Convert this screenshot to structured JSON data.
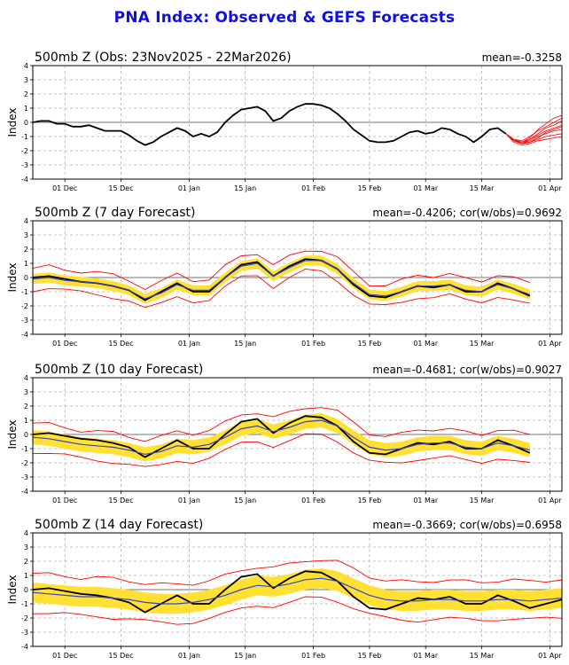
{
  "figure_title": "PNA Index: Observed & GEFS Forecasts",
  "colors": {
    "title": "#1010e0",
    "observed": "#000000",
    "members": "#ff0000",
    "spread": "#ffe033",
    "ensemble_mean": "#3344cc",
    "grid": "#b0b0b0"
  },
  "chart_data": [
    {
      "type": "line",
      "title": "500mb Z (Obs: 23Nov2025 - 22Mar2026)",
      "stat": "mean=-0.3258",
      "ylabel": "Index",
      "ylim": [
        -4,
        4
      ],
      "yticks": [
        -4,
        -3,
        -2,
        -1,
        0,
        1,
        2,
        3,
        4
      ],
      "xlim": [
        0,
        132
      ],
      "xticks": [
        {
          "x": 8,
          "label": "01 Dec"
        },
        {
          "x": 22,
          "label": "15 Dec"
        },
        {
          "x": 39,
          "label": "01 Jan"
        },
        {
          "x": 53,
          "label": "15 Jan"
        },
        {
          "x": 70,
          "label": "01 Feb"
        },
        {
          "x": 84,
          "label": "15 Feb"
        },
        {
          "x": 98,
          "label": "01 Mar"
        },
        {
          "x": 112,
          "label": "15 Mar"
        },
        {
          "x": 129,
          "label": "01 Apr"
        }
      ],
      "observed": {
        "x": [
          0,
          2,
          4,
          6,
          8,
          10,
          12,
          14,
          16,
          18,
          20,
          22,
          24,
          26,
          28,
          30,
          32,
          34,
          36,
          38,
          40,
          42,
          44,
          46,
          48,
          50,
          52,
          54,
          56,
          58,
          60,
          62,
          64,
          66,
          68,
          70,
          72,
          74,
          76,
          78,
          80,
          82,
          84,
          86,
          88,
          90,
          92,
          94,
          96,
          98,
          100,
          102,
          104,
          106,
          108,
          110,
          112,
          114,
          116,
          118
        ],
        "y": [
          0.0,
          0.1,
          0.1,
          -0.1,
          -0.1,
          -0.3,
          -0.3,
          -0.2,
          -0.4,
          -0.6,
          -0.6,
          -0.6,
          -0.9,
          -1.3,
          -1.6,
          -1.4,
          -1.0,
          -0.7,
          -0.4,
          -0.6,
          -1.0,
          -0.8,
          -1.0,
          -0.7,
          0.0,
          0.5,
          0.9,
          1.0,
          1.1,
          0.8,
          0.1,
          0.3,
          0.8,
          1.1,
          1.3,
          1.3,
          1.2,
          1.0,
          0.6,
          0.1,
          -0.5,
          -0.9,
          -1.3,
          -1.4,
          -1.4,
          -1.3,
          -1.0,
          -0.7,
          -0.6,
          -0.8,
          -0.7,
          -0.4,
          -0.5,
          -0.8,
          -1.0,
          -1.4,
          -1.0,
          -0.5,
          -0.4,
          -0.8
        ]
      },
      "members": {
        "x": [
          118,
          120,
          122,
          124,
          126,
          128,
          130,
          132
        ],
        "series": [
          [
            -0.8,
            -1.3,
            -1.5,
            -1.3,
            -1.0,
            -0.8,
            -0.6,
            -0.5
          ],
          [
            -0.8,
            -1.2,
            -1.3,
            -1.0,
            -0.6,
            -0.3,
            0.0,
            0.3
          ],
          [
            -0.8,
            -1.3,
            -1.5,
            -1.2,
            -0.8,
            -0.4,
            -0.2,
            0.1
          ],
          [
            -0.8,
            -1.4,
            -1.6,
            -1.5,
            -1.3,
            -1.2,
            -1.1,
            -1.0
          ],
          [
            -0.8,
            -1.2,
            -1.4,
            -1.1,
            -0.5,
            -0.1,
            0.3,
            0.5
          ],
          [
            -0.8,
            -1.3,
            -1.5,
            -1.4,
            -1.2,
            -1.0,
            -0.9,
            -0.8
          ],
          [
            -0.8,
            -1.3,
            -1.4,
            -1.2,
            -0.9,
            -0.6,
            -0.4,
            -0.2
          ],
          [
            -0.8,
            -1.2,
            -1.5,
            -1.4,
            -1.1,
            -0.7,
            -0.5,
            -0.3
          ]
        ]
      }
    },
    {
      "type": "line",
      "title": "500mb Z (7 day Forecast)",
      "stat": "mean=-0.4206; cor(w/obs)=0.9692",
      "ylabel": "Index",
      "ylim": [
        -4,
        4
      ],
      "yticks": [
        -4,
        -3,
        -2,
        -1,
        0,
        1,
        2,
        3,
        4
      ],
      "xlim": [
        0,
        132
      ],
      "xticks": [
        {
          "x": 8,
          "label": "01 Dec"
        },
        {
          "x": 22,
          "label": "15 Dec"
        },
        {
          "x": 39,
          "label": "01 Jan"
        },
        {
          "x": 53,
          "label": "15 Jan"
        },
        {
          "x": 70,
          "label": "01 Feb"
        },
        {
          "x": 84,
          "label": "15 Feb"
        },
        {
          "x": 98,
          "label": "01 Mar"
        },
        {
          "x": 112,
          "label": "15 Mar"
        },
        {
          "x": 129,
          "label": "01 Apr"
        }
      ],
      "forecast_x": [
        0,
        4,
        8,
        12,
        16,
        20,
        24,
        28,
        32,
        36,
        40,
        44,
        48,
        52,
        56,
        60,
        64,
        68,
        72,
        76,
        80,
        84,
        88,
        92,
        96,
        100,
        104,
        108,
        112,
        116,
        120,
        124
      ],
      "observed_y": [
        0.0,
        0.1,
        -0.1,
        -0.3,
        -0.4,
        -0.6,
        -0.9,
        -1.6,
        -1.0,
        -0.4,
        -1.0,
        -1.0,
        0.0,
        0.9,
        1.1,
        0.1,
        0.8,
        1.3,
        1.2,
        0.6,
        -0.5,
        -1.3,
        -1.4,
        -1.0,
        -0.6,
        -0.7,
        -0.5,
        -1.0,
        -1.0,
        -0.4,
        -0.8,
        -1.3
      ],
      "mean_y": [
        -0.1,
        0.0,
        -0.2,
        -0.3,
        -0.4,
        -0.6,
        -0.9,
        -1.5,
        -1.1,
        -0.5,
        -0.9,
        -0.9,
        0.0,
        0.8,
        1.0,
        0.1,
        0.7,
        1.2,
        1.2,
        0.6,
        -0.4,
        -1.2,
        -1.3,
        -1.0,
        -0.6,
        -0.6,
        -0.5,
        -0.9,
        -1.0,
        -0.5,
        -0.8,
        -1.2
      ],
      "spread": 0.35,
      "envelope": 0.75
    },
    {
      "type": "line",
      "title": "500mb Z (10 day Forecast)",
      "stat": "mean=-0.4681; cor(w/obs)=0.9027",
      "ylabel": "Index",
      "ylim": [
        -4,
        4
      ],
      "yticks": [
        -4,
        -3,
        -2,
        -1,
        0,
        1,
        2,
        3,
        4
      ],
      "xlim": [
        0,
        132
      ],
      "xticks": [
        {
          "x": 8,
          "label": "01 Dec"
        },
        {
          "x": 22,
          "label": "15 Dec"
        },
        {
          "x": 39,
          "label": "01 Jan"
        },
        {
          "x": 53,
          "label": "15 Jan"
        },
        {
          "x": 70,
          "label": "01 Feb"
        },
        {
          "x": 84,
          "label": "15 Feb"
        },
        {
          "x": 98,
          "label": "01 Mar"
        },
        {
          "x": 112,
          "label": "15 Mar"
        },
        {
          "x": 129,
          "label": "01 Apr"
        }
      ],
      "forecast_x": [
        0,
        4,
        8,
        12,
        16,
        20,
        24,
        28,
        32,
        36,
        40,
        44,
        48,
        52,
        56,
        60,
        64,
        68,
        72,
        76,
        80,
        84,
        88,
        92,
        96,
        100,
        104,
        108,
        112,
        116,
        120,
        124
      ],
      "observed_y": [
        0.0,
        0.1,
        -0.1,
        -0.3,
        -0.4,
        -0.6,
        -0.9,
        -1.6,
        -1.0,
        -0.4,
        -1.0,
        -1.0,
        0.0,
        0.9,
        1.1,
        0.1,
        0.8,
        1.3,
        1.2,
        0.6,
        -0.5,
        -1.3,
        -1.4,
        -1.0,
        -0.6,
        -0.7,
        -0.5,
        -1.0,
        -1.0,
        -0.4,
        -0.8,
        -1.3
      ],
      "mean_y": [
        -0.2,
        -0.3,
        -0.5,
        -0.7,
        -0.8,
        -0.9,
        -1.1,
        -1.4,
        -1.2,
        -0.8,
        -0.9,
        -0.7,
        -0.2,
        0.4,
        0.6,
        0.2,
        0.5,
        0.9,
        1.0,
        0.6,
        -0.2,
        -0.9,
        -1.1,
        -1.0,
        -0.7,
        -0.6,
        -0.6,
        -0.9,
        -1.0,
        -0.6,
        -0.8,
        -1.1
      ],
      "spread": 0.5,
      "envelope": 1.0
    },
    {
      "type": "line",
      "title": "500mb Z (14 day Forecast)",
      "stat": "mean=-0.3669; cor(w/obs)=0.6958",
      "ylabel": "Index",
      "ylim": [
        -4,
        4
      ],
      "yticks": [
        -4,
        -3,
        -2,
        -1,
        0,
        1,
        2,
        3,
        4
      ],
      "xlim": [
        0,
        132
      ],
      "xticks": [
        {
          "x": 8,
          "label": "01 Dec"
        },
        {
          "x": 22,
          "label": "15 Dec"
        },
        {
          "x": 39,
          "label": "01 Jan"
        },
        {
          "x": 53,
          "label": "15 Jan"
        },
        {
          "x": 70,
          "label": "01 Feb"
        },
        {
          "x": 84,
          "label": "15 Feb"
        },
        {
          "x": 98,
          "label": "01 Mar"
        },
        {
          "x": 112,
          "label": "15 Mar"
        },
        {
          "x": 129,
          "label": "01 Apr"
        }
      ],
      "forecast_x": [
        0,
        4,
        8,
        12,
        16,
        20,
        24,
        28,
        32,
        36,
        40,
        44,
        48,
        52,
        56,
        60,
        64,
        68,
        72,
        76,
        80,
        84,
        88,
        92,
        96,
        100,
        104,
        108,
        112,
        116,
        120,
        124,
        128,
        132
      ],
      "observed_y": [
        0.0,
        0.1,
        -0.1,
        -0.3,
        -0.4,
        -0.6,
        -0.9,
        -1.6,
        -1.0,
        -0.4,
        -1.0,
        -1.0,
        0.0,
        0.9,
        1.1,
        0.1,
        0.8,
        1.3,
        1.2,
        0.6,
        -0.5,
        -1.3,
        -1.4,
        -1.0,
        -0.6,
        -0.7,
        -0.5,
        -1.0,
        -1.0,
        -0.4,
        -0.8,
        -1.3,
        -1.0,
        -0.7
      ],
      "mean_y": [
        -0.2,
        -0.3,
        -0.4,
        -0.5,
        -0.5,
        -0.6,
        -0.7,
        -0.9,
        -1.0,
        -1.0,
        -0.9,
        -0.7,
        -0.4,
        0.0,
        0.3,
        0.2,
        0.4,
        0.7,
        0.8,
        0.6,
        0.1,
        -0.4,
        -0.7,
        -0.8,
        -0.8,
        -0.7,
        -0.7,
        -0.8,
        -0.8,
        -0.7,
        -0.7,
        -0.8,
        -0.7,
        -0.6
      ],
      "spread": 0.7,
      "envelope": 1.35
    }
  ]
}
